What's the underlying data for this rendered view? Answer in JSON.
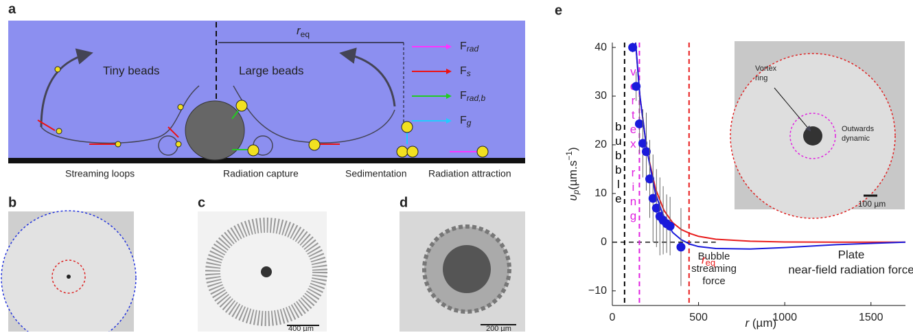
{
  "panel_labels": [
    "a",
    "b",
    "c",
    "d",
    "e"
  ],
  "panel_a": {
    "r_eq": {
      "main": "r",
      "sub": "eq"
    },
    "tiny_beads": "Tiny beads",
    "large_beads": "Large beads",
    "forces": [
      {
        "main": "F",
        "sub": "rad",
        "color": "#ff33ff"
      },
      {
        "main": "F",
        "sub": "s",
        "color": "#ee1111"
      },
      {
        "main": "F",
        "sub": "rad,b",
        "color": "#22cc22"
      },
      {
        "main": "F",
        "sub": "g",
        "color": "#22ccff"
      }
    ],
    "captions": [
      "Streaming loops",
      "Radiation capture",
      "Sedimentation",
      "Radiation attraction"
    ]
  },
  "panel_c": {
    "scale": "400 µm"
  },
  "panel_d": {
    "scale": "200 µm"
  },
  "chart_data": {
    "type": "scatter",
    "x": [
      118,
      138,
      157,
      177,
      197,
      217,
      236,
      256,
      276,
      295,
      315,
      335,
      398
    ],
    "values": [
      40,
      32,
      24.3,
      20.3,
      18.6,
      13,
      9,
      7,
      5.3,
      4.5,
      3.8,
      3.3,
      -1
    ],
    "errors": [
      1,
      3,
      6,
      7,
      8,
      8,
      9,
      8,
      8,
      7,
      6,
      6,
      8
    ],
    "color": "#1a1adb",
    "fits": [
      {
        "color": "#e81c1c",
        "x": [
          135,
          160,
          200,
          250,
          300,
          350,
          400,
          450,
          500,
          600,
          800,
          1000,
          1300,
          1700
        ],
        "values": [
          41,
          30,
          19,
          11,
          6.5,
          4,
          2.6,
          1.8,
          1.2,
          0.6,
          0.2,
          0.05,
          0,
          0
        ]
      },
      {
        "color": "#1a1adb",
        "x": [
          135,
          160,
          200,
          250,
          300,
          350,
          400,
          450,
          500,
          600,
          800,
          1000,
          1300,
          1700
        ],
        "values": [
          41,
          30,
          19,
          10,
          5,
          2,
          0.5,
          -0.4,
          -0.9,
          -1.3,
          -1.4,
          -1.1,
          -0.5,
          0
        ]
      }
    ],
    "markers": [
      {
        "x": 71,
        "color": "#000000",
        "label": "bubble"
      },
      {
        "x": 157,
        "color": "#e020e0",
        "label": "vortex ring"
      },
      {
        "x": 445,
        "color": "#e81c1c"
      }
    ],
    "zero_line_to": 600,
    "xlim": [
      0,
      1700
    ],
    "ylim": [
      -13,
      41
    ],
    "xticks": [
      0,
      500,
      1000,
      1500
    ],
    "yticks": [
      {
        "value": -10,
        "label": "−10"
      },
      0,
      10,
      20,
      30,
      40
    ],
    "xlabel": {
      "main": "r",
      "unit": " (µm)"
    },
    "ylabel": {
      "main": "υ",
      "sub": "p",
      "unit": "(µm.s",
      "sup": "−1",
      "end": ")"
    },
    "annotations": {
      "bubble_force": [
        "Bubble",
        "streaming",
        "force"
      ],
      "r_eq": {
        "main": "r",
        "sub": "eq"
      },
      "plate_force": [
        "Plate",
        "near-field radiation force"
      ]
    },
    "inset": {
      "callout": [
        "Vortex",
        "ring"
      ],
      "dynamic": [
        "Outwards",
        "dynamic"
      ],
      "scale": "100 µm"
    }
  }
}
